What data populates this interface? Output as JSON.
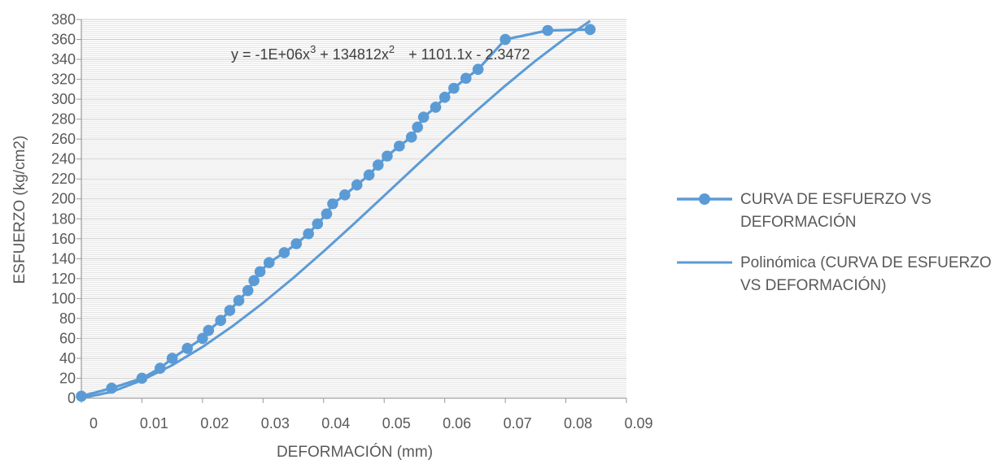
{
  "chart_data": {
    "type": "scatter",
    "title": "",
    "xlabel": "DEFORMACIÓN (mm)",
    "ylabel": "ESFUERZO (kg/cm2)",
    "xlim": [
      0,
      0.09
    ],
    "ylim": [
      0,
      380
    ],
    "x_ticks": [
      "0",
      "0.01",
      "0.02",
      "0.03",
      "0.04",
      "0.05",
      "0.06",
      "0.07",
      "0.08",
      "0.09"
    ],
    "y_ticks": [
      "0",
      "20",
      "40",
      "60",
      "80",
      "100",
      "120",
      "140",
      "160",
      "180",
      "200",
      "220",
      "240",
      "260",
      "280",
      "300",
      "320",
      "340",
      "360",
      "380"
    ],
    "grid": true,
    "legend_position": "right",
    "color": "#5b9bd5",
    "series": [
      {
        "name": "CURVA DE ESFUERZO VS DEFORMACIÓN",
        "style": "line-markers",
        "points": [
          [
            0.0,
            2
          ],
          [
            0.005,
            10
          ],
          [
            0.01,
            20
          ],
          [
            0.013,
            30
          ],
          [
            0.015,
            40
          ],
          [
            0.0175,
            50
          ],
          [
            0.02,
            60
          ],
          [
            0.021,
            68
          ],
          [
            0.023,
            78
          ],
          [
            0.0245,
            88
          ],
          [
            0.026,
            98
          ],
          [
            0.0275,
            108
          ],
          [
            0.0285,
            118
          ],
          [
            0.0295,
            127
          ],
          [
            0.031,
            136
          ],
          [
            0.0335,
            146
          ],
          [
            0.0355,
            155
          ],
          [
            0.0375,
            165
          ],
          [
            0.039,
            175
          ],
          [
            0.0405,
            185
          ],
          [
            0.0415,
            195
          ],
          [
            0.0435,
            204
          ],
          [
            0.0455,
            214
          ],
          [
            0.0475,
            224
          ],
          [
            0.049,
            234
          ],
          [
            0.0505,
            243
          ],
          [
            0.0525,
            253
          ],
          [
            0.0545,
            262
          ],
          [
            0.0555,
            272
          ],
          [
            0.0565,
            282
          ],
          [
            0.0585,
            292
          ],
          [
            0.06,
            302
          ],
          [
            0.0615,
            311
          ],
          [
            0.0635,
            321
          ],
          [
            0.0655,
            330
          ],
          [
            0.07,
            360
          ],
          [
            0.077,
            369
          ],
          [
            0.084,
            370
          ]
        ]
      },
      {
        "name": "Polinómica (CURVA DE ESFUERZO VS DEFORMACIÓN)",
        "style": "line",
        "equation": {
          "prefix": "y = -1E+06x",
          "exp1": "3",
          "mid": " + 134812x",
          "exp2": "2",
          "suffix": " + 1101.1x - 2.3472"
        },
        "points": [
          [
            0.0,
            -2.35
          ],
          [
            0.005,
            6.3
          ],
          [
            0.01,
            18.0
          ],
          [
            0.015,
            33.1
          ],
          [
            0.02,
            51.4
          ],
          [
            0.025,
            72.4
          ],
          [
            0.03,
            95.6
          ],
          [
            0.035,
            120.7
          ],
          [
            0.04,
            147.3
          ],
          [
            0.045,
            174.9
          ],
          [
            0.05,
            203.2
          ],
          [
            0.055,
            231.6
          ],
          [
            0.06,
            259.8
          ],
          [
            0.065,
            287.2
          ],
          [
            0.07,
            313.6
          ],
          [
            0.075,
            338.6
          ],
          [
            0.08,
            361.7
          ],
          [
            0.084,
            378.6
          ]
        ]
      }
    ]
  }
}
